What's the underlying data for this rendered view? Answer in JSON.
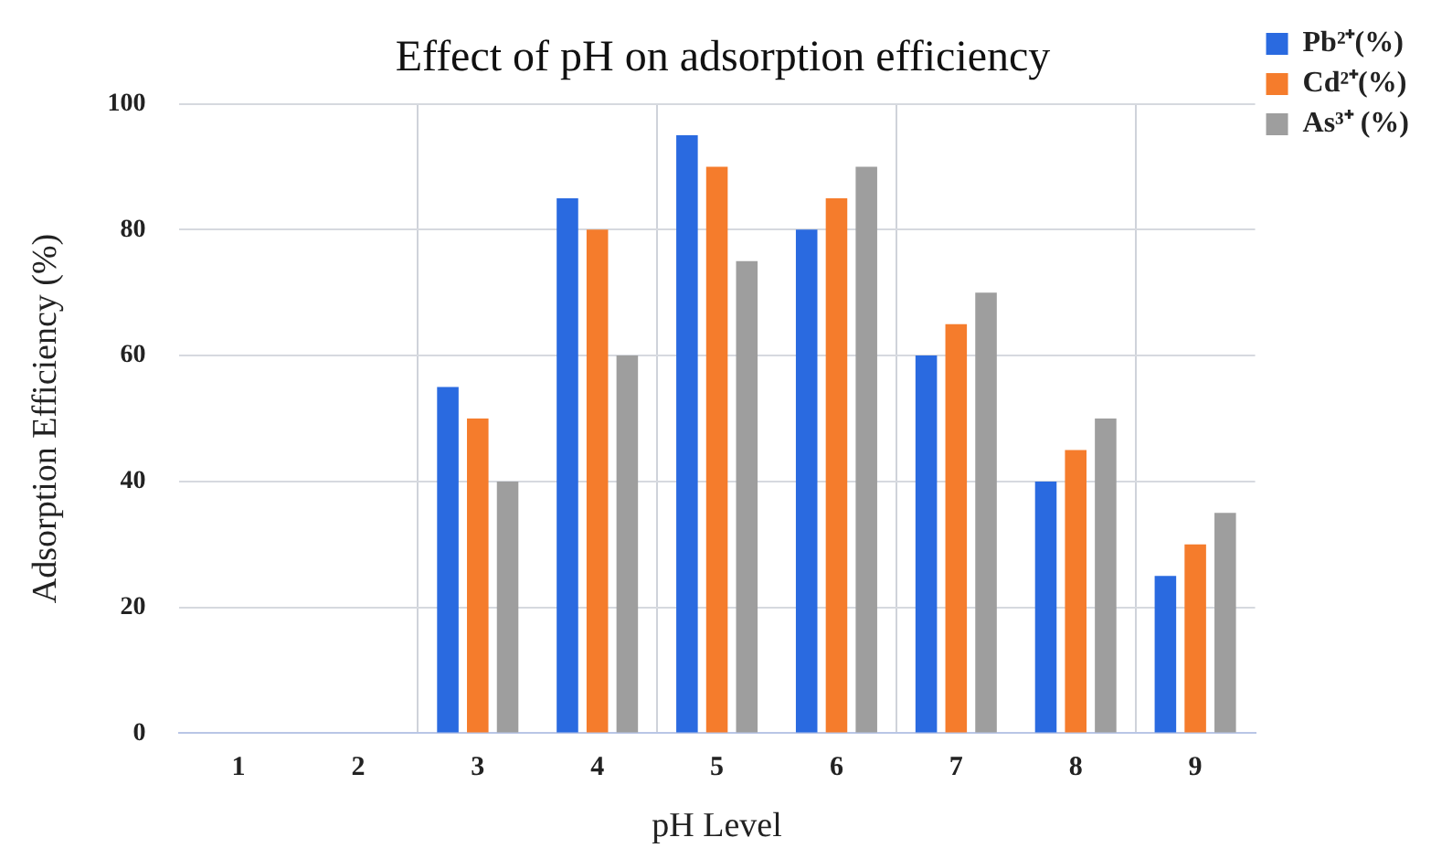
{
  "chart_data": {
    "type": "bar",
    "title": "Effect of pH on adsorption efficiency",
    "xlabel": "pH Level",
    "ylabel": "Adsorption Efficiency (%)",
    "categories": [
      "1",
      "2",
      "3",
      "4",
      "5",
      "6",
      "7",
      "8",
      "9"
    ],
    "series": [
      {
        "name": "Pb²⁺(%)",
        "color": "#2a6ae0",
        "values": [
          null,
          null,
          55,
          85,
          95,
          80,
          60,
          40,
          25
        ]
      },
      {
        "name": "Cd²⁺(%)",
        "color": "#f57c2c",
        "values": [
          null,
          null,
          50,
          80,
          90,
          85,
          65,
          45,
          30
        ]
      },
      {
        "name": "As³⁺ (%)",
        "color": "#9e9e9e",
        "values": [
          null,
          null,
          40,
          60,
          75,
          90,
          70,
          50,
          35
        ]
      }
    ],
    "ylim": [
      0,
      100
    ],
    "yticks": [
      0,
      20,
      40,
      60,
      80,
      100
    ],
    "grid": true,
    "legend": "top right"
  }
}
